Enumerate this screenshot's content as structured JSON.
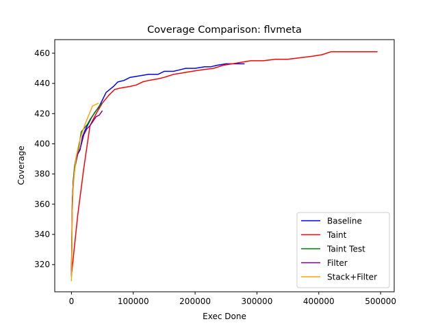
{
  "chart_data": {
    "type": "line",
    "title": "Coverage Comparison: flvmeta",
    "xlabel": "Exec Done",
    "ylabel": "Coverage",
    "xlim": [
      -27000,
      522000
    ],
    "ylim": [
      302,
      469
    ],
    "xticks": [
      0,
      100000,
      200000,
      300000,
      400000,
      500000
    ],
    "xtick_labels": [
      "0",
      "100000",
      "200000",
      "300000",
      "400000",
      "500000"
    ],
    "yticks": [
      320,
      340,
      360,
      380,
      400,
      420,
      440,
      460
    ],
    "ytick_labels": [
      "320",
      "340",
      "360",
      "380",
      "400",
      "420",
      "440",
      "460"
    ],
    "grid": false,
    "legend_position": "lower-right",
    "series": [
      {
        "name": "Baseline",
        "color": "#0000ff",
        "points": [
          [
            0,
            313
          ],
          [
            1500,
            360
          ],
          [
            3000,
            375
          ],
          [
            6000,
            387
          ],
          [
            10000,
            393
          ],
          [
            14000,
            396
          ],
          [
            18000,
            405
          ],
          [
            22000,
            409
          ],
          [
            27000,
            413
          ],
          [
            32000,
            417
          ],
          [
            38000,
            421
          ],
          [
            44000,
            424
          ],
          [
            50000,
            429
          ],
          [
            56000,
            434
          ],
          [
            62000,
            436
          ],
          [
            68000,
            438
          ],
          [
            75000,
            441
          ],
          [
            85000,
            442
          ],
          [
            95000,
            444
          ],
          [
            110000,
            445
          ],
          [
            125000,
            446
          ],
          [
            140000,
            446
          ],
          [
            150000,
            448
          ],
          [
            165000,
            448
          ],
          [
            175000,
            449
          ],
          [
            185000,
            450
          ],
          [
            200000,
            450
          ],
          [
            215000,
            451
          ],
          [
            225000,
            451
          ],
          [
            235000,
            452
          ],
          [
            250000,
            453
          ],
          [
            265000,
            453
          ],
          [
            280000,
            453
          ]
        ]
      },
      {
        "name": "Taint",
        "color": "#ff0000",
        "points": [
          [
            0,
            313
          ],
          [
            10000,
            352
          ],
          [
            20000,
            384
          ],
          [
            30000,
            412
          ],
          [
            40000,
            420
          ],
          [
            50000,
            427
          ],
          [
            60000,
            432
          ],
          [
            70000,
            436
          ],
          [
            80000,
            437
          ],
          [
            95000,
            438
          ],
          [
            105000,
            439
          ],
          [
            115000,
            441
          ],
          [
            125000,
            442
          ],
          [
            140000,
            443
          ],
          [
            150000,
            444
          ],
          [
            165000,
            446
          ],
          [
            180000,
            447
          ],
          [
            195000,
            448
          ],
          [
            210000,
            449
          ],
          [
            230000,
            450
          ],
          [
            245000,
            452
          ],
          [
            260000,
            453
          ],
          [
            275000,
            454
          ],
          [
            290000,
            455
          ],
          [
            310000,
            455
          ],
          [
            330000,
            456
          ],
          [
            350000,
            456
          ],
          [
            370000,
            457
          ],
          [
            390000,
            458
          ],
          [
            405000,
            459
          ],
          [
            420000,
            461
          ],
          [
            440000,
            461
          ],
          [
            460000,
            461
          ],
          [
            480000,
            461
          ],
          [
            495000,
            461
          ]
        ]
      },
      {
        "name": "Taint Test",
        "color": "#008000",
        "points": [
          [
            0,
            312
          ],
          [
            1500,
            360
          ],
          [
            3000,
            376
          ],
          [
            5000,
            385
          ],
          [
            8000,
            392
          ],
          [
            12000,
            398
          ],
          [
            16000,
            408
          ],
          [
            20000,
            410
          ],
          [
            26000,
            413
          ],
          [
            30000,
            416
          ],
          [
            35000,
            419
          ],
          [
            40000,
            422
          ],
          [
            45000,
            425
          ],
          [
            50000,
            427
          ]
        ]
      },
      {
        "name": "Filter",
        "color": "#800080",
        "points": [
          [
            0,
            315
          ],
          [
            1500,
            362
          ],
          [
            3000,
            375
          ],
          [
            6000,
            385
          ],
          [
            10000,
            393
          ],
          [
            15000,
            398
          ],
          [
            20000,
            406
          ],
          [
            25000,
            410
          ],
          [
            30000,
            412
          ],
          [
            35000,
            415
          ],
          [
            40000,
            418
          ],
          [
            45000,
            419
          ],
          [
            50000,
            422
          ]
        ]
      },
      {
        "name": "Stack+Filter",
        "color": "#ffa500",
        "points": [
          [
            0,
            309
          ],
          [
            1500,
            355
          ],
          [
            3000,
            372
          ],
          [
            5000,
            382
          ],
          [
            8000,
            392
          ],
          [
            12000,
            400
          ],
          [
            17000,
            407
          ],
          [
            22000,
            413
          ],
          [
            26000,
            417
          ],
          [
            30000,
            421
          ],
          [
            34000,
            425
          ],
          [
            39000,
            426
          ],
          [
            44000,
            427
          ]
        ]
      }
    ]
  }
}
